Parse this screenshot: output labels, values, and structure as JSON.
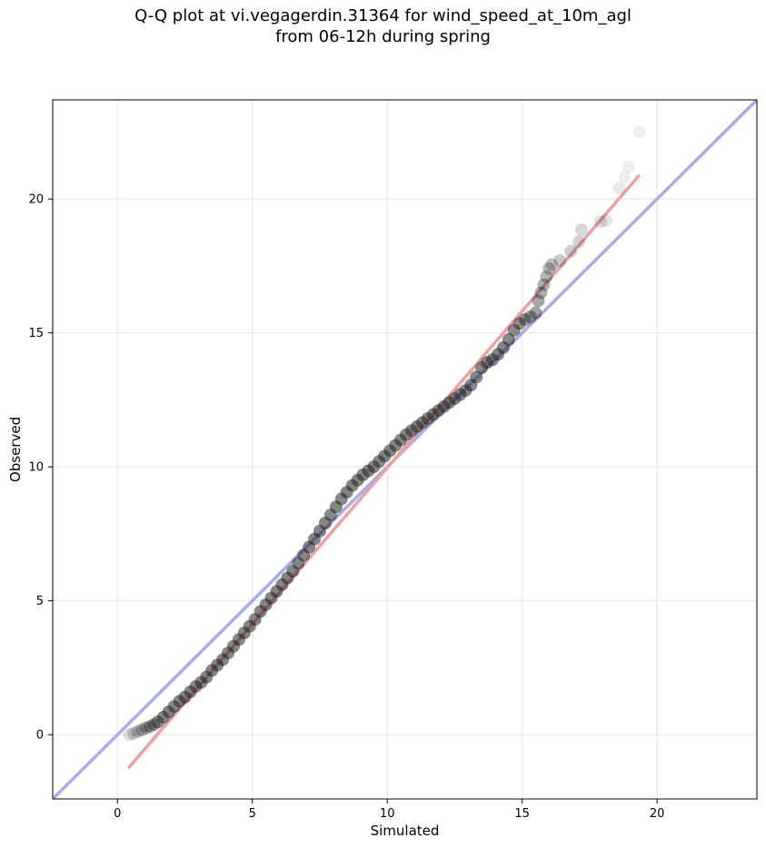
{
  "title_line1": "Q-Q plot at vi.vegagerdin.31364 for wind_speed_at_10m_agl",
  "title_line2": "from 06-12h during spring",
  "chart_data": {
    "type": "scatter",
    "xlabel": "Simulated",
    "ylabel": "Observed",
    "xlim": [
      -2.4,
      23.7
    ],
    "ylim": [
      -2.4,
      23.7
    ],
    "xticks": [
      0,
      5,
      10,
      15,
      20
    ],
    "yticks": [
      0,
      5,
      10,
      15,
      20
    ],
    "grid": true,
    "reference_line": {
      "name": "1:1 line",
      "color": "#aaaaee",
      "from": [
        -2.4,
        -2.4
      ],
      "to": [
        23.7,
        23.7
      ]
    },
    "fit_line": {
      "name": "fit line",
      "color": "#f0a0a0",
      "from": [
        0.4,
        -1.25
      ],
      "to": [
        19.35,
        20.9
      ]
    },
    "points": [
      [
        0.45,
        0.0
      ],
      [
        0.6,
        0.05
      ],
      [
        0.75,
        0.12
      ],
      [
        0.9,
        0.18
      ],
      [
        1.05,
        0.25
      ],
      [
        1.2,
        0.3
      ],
      [
        1.35,
        0.38
      ],
      [
        1.5,
        0.48
      ],
      [
        1.7,
        0.65
      ],
      [
        1.9,
        0.85
      ],
      [
        2.1,
        1.05
      ],
      [
        2.3,
        1.25
      ],
      [
        2.5,
        1.4
      ],
      [
        2.7,
        1.6
      ],
      [
        2.9,
        1.8
      ],
      [
        3.1,
        1.95
      ],
      [
        3.3,
        2.15
      ],
      [
        3.5,
        2.4
      ],
      [
        3.7,
        2.6
      ],
      [
        3.9,
        2.8
      ],
      [
        4.1,
        3.05
      ],
      [
        4.3,
        3.3
      ],
      [
        4.5,
        3.55
      ],
      [
        4.7,
        3.8
      ],
      [
        4.9,
        4.05
      ],
      [
        5.1,
        4.3
      ],
      [
        5.3,
        4.6
      ],
      [
        5.5,
        4.85
      ],
      [
        5.7,
        5.1
      ],
      [
        5.9,
        5.35
      ],
      [
        6.1,
        5.6
      ],
      [
        6.3,
        5.85
      ],
      [
        6.5,
        6.1
      ],
      [
        6.7,
        6.4
      ],
      [
        6.9,
        6.7
      ],
      [
        7.1,
        7.0
      ],
      [
        7.3,
        7.3
      ],
      [
        7.5,
        7.6
      ],
      [
        7.7,
        7.9
      ],
      [
        7.9,
        8.2
      ],
      [
        8.1,
        8.5
      ],
      [
        8.3,
        8.8
      ],
      [
        8.5,
        9.05
      ],
      [
        8.7,
        9.3
      ],
      [
        8.9,
        9.5
      ],
      [
        9.1,
        9.7
      ],
      [
        9.3,
        9.85
      ],
      [
        9.5,
        10.0
      ],
      [
        9.7,
        10.2
      ],
      [
        9.9,
        10.4
      ],
      [
        10.1,
        10.6
      ],
      [
        10.3,
        10.8
      ],
      [
        10.5,
        11.0
      ],
      [
        10.7,
        11.2
      ],
      [
        10.9,
        11.35
      ],
      [
        11.1,
        11.5
      ],
      [
        11.3,
        11.65
      ],
      [
        11.5,
        11.8
      ],
      [
        11.7,
        11.95
      ],
      [
        11.9,
        12.1
      ],
      [
        12.1,
        12.25
      ],
      [
        12.3,
        12.4
      ],
      [
        12.5,
        12.55
      ],
      [
        12.7,
        12.7
      ],
      [
        12.9,
        12.85
      ],
      [
        13.1,
        13.05
      ],
      [
        13.3,
        13.35
      ],
      [
        13.5,
        13.7
      ],
      [
        13.7,
        13.9
      ],
      [
        13.9,
        14.0
      ],
      [
        14.1,
        14.2
      ],
      [
        14.3,
        14.45
      ],
      [
        14.5,
        14.75
      ],
      [
        14.7,
        15.1
      ],
      [
        14.9,
        15.35
      ],
      [
        15.1,
        15.5
      ],
      [
        15.3,
        15.6
      ],
      [
        15.5,
        15.75
      ],
      [
        15.6,
        16.2
      ],
      [
        15.7,
        16.5
      ],
      [
        15.8,
        16.8
      ],
      [
        15.9,
        17.1
      ],
      [
        16.0,
        17.4
      ],
      [
        16.1,
        17.55
      ],
      [
        16.4,
        17.7
      ],
      [
        16.8,
        18.05
      ],
      [
        17.1,
        18.4
      ],
      [
        17.2,
        18.85
      ],
      [
        17.9,
        19.15
      ],
      [
        18.1,
        19.2
      ],
      [
        18.6,
        20.4
      ],
      [
        18.8,
        20.8
      ],
      [
        18.95,
        21.2
      ],
      [
        19.35,
        22.5
      ]
    ]
  }
}
